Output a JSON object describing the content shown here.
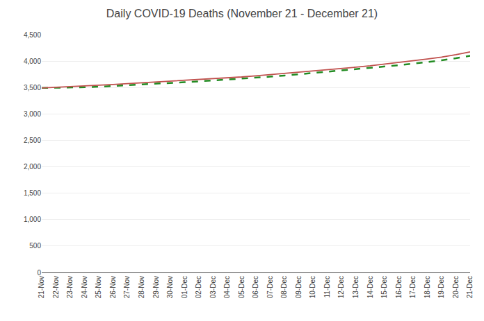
{
  "chart_data": {
    "type": "line",
    "title": "Daily COVID-19 Deaths (November 21 - December 21)",
    "categories": [
      "21-Nov",
      "22-Nov",
      "23-Nov",
      "24-Nov",
      "25-Nov",
      "26-Nov",
      "27-Nov",
      "28-Nov",
      "29-Nov",
      "30-Nov",
      "01-Dec",
      "02-Dec",
      "03-Dec",
      "04-Dec",
      "05-Dec",
      "06-Dec",
      "07-Dec",
      "08-Dec",
      "09-Dec",
      "10-Dec",
      "11-Dec",
      "12-Dec",
      "13-Dec",
      "14-Dec",
      "15-Dec",
      "16-Dec",
      "17-Dec",
      "18-Dec",
      "19-Dec",
      "20-Dec",
      "21-Dec"
    ],
    "series": [
      {
        "color": "#228B22",
        "line_style": "dashed",
        "values": [
          3492,
          3495,
          3499,
          3505,
          3515,
          3528,
          3542,
          3556,
          3571,
          3586,
          3601,
          3616,
          3632,
          3648,
          3665,
          3685,
          3705,
          3726,
          3750,
          3773,
          3798,
          3820,
          3843,
          3867,
          3893,
          3922,
          3950,
          3980,
          4014,
          4054,
          4100
        ]
      },
      {
        "color": "#C0504D",
        "line_style": "solid",
        "values": [
          3492,
          3504,
          3516,
          3528,
          3542,
          3558,
          3574,
          3589,
          3604,
          3619,
          3634,
          3650,
          3666,
          3682,
          3700,
          3722,
          3744,
          3766,
          3790,
          3815,
          3840,
          3862,
          3884,
          3910,
          3940,
          3975,
          4005,
          4038,
          4075,
          4120,
          4175
        ]
      }
    ],
    "ylim": [
      0,
      4500
    ],
    "yticks": [
      0,
      500,
      {
        "value": 1000,
        "label": "1,000"
      },
      {
        "value": 1500,
        "label": "1,500"
      },
      {
        "value": 2000,
        "label": "2,000"
      },
      {
        "value": 2500,
        "label": "2,500"
      },
      {
        "value": 3000,
        "label": "3,000"
      },
      {
        "value": 3500,
        "label": "3,500"
      },
      {
        "value": 4000,
        "label": "4,000"
      },
      {
        "value": 4500,
        "label": "4,500"
      }
    ],
    "grid": true
  }
}
